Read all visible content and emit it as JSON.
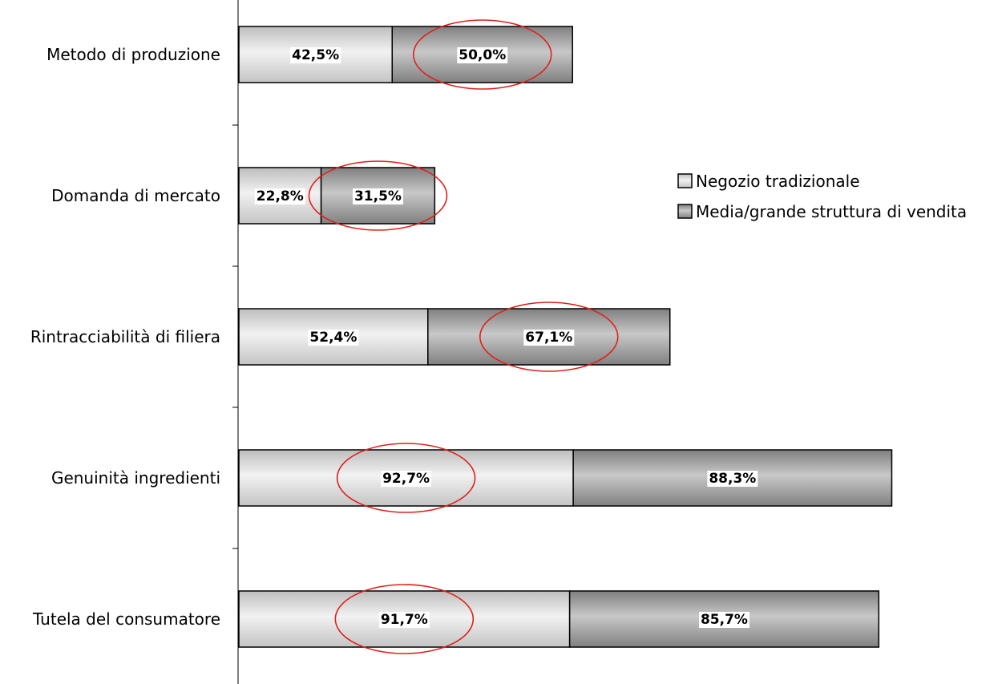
{
  "chart_data": {
    "type": "bar",
    "orientation": "horizontal",
    "stacked": true,
    "categories": [
      "Metodo di produzione",
      "Domanda di mercato",
      "Rintracciabilità di filiera",
      "Genuinità ingredienti",
      "Tutela del consumatore"
    ],
    "series": [
      {
        "name": "Negozio tradizionale",
        "values": [
          42.5,
          22.8,
          52.4,
          92.7,
          91.7
        ],
        "labels": [
          "42,5%",
          "22,8%",
          "52,4%",
          "92,7%",
          "91,7%"
        ],
        "color": "#d9d9d9"
      },
      {
        "name": "Media/grande struttura di vendita",
        "values": [
          50.0,
          31.5,
          67.1,
          88.3,
          85.7
        ],
        "labels": [
          "50,0%",
          "31,5%",
          "67,1%",
          "88,3%",
          "85,7%"
        ],
        "color": "#a6a6a6"
      }
    ],
    "highlighted": [
      {
        "category": "Metodo di produzione",
        "series": "Media/grande struttura di vendita"
      },
      {
        "category": "Domanda di mercato",
        "series": "Media/grande struttura di vendita"
      },
      {
        "category": "Rintracciabilità di filiera",
        "series": "Media/grande struttura di vendita"
      },
      {
        "category": "Genuinità ingredienti",
        "series": "Negozio tradizionale"
      },
      {
        "category": "Tutela del consumatore",
        "series": "Negozio tradizionale"
      }
    ],
    "highlight_color": "#e0201b",
    "legend_position": "right",
    "xlim": [
      0,
      190
    ],
    "grid": false
  }
}
